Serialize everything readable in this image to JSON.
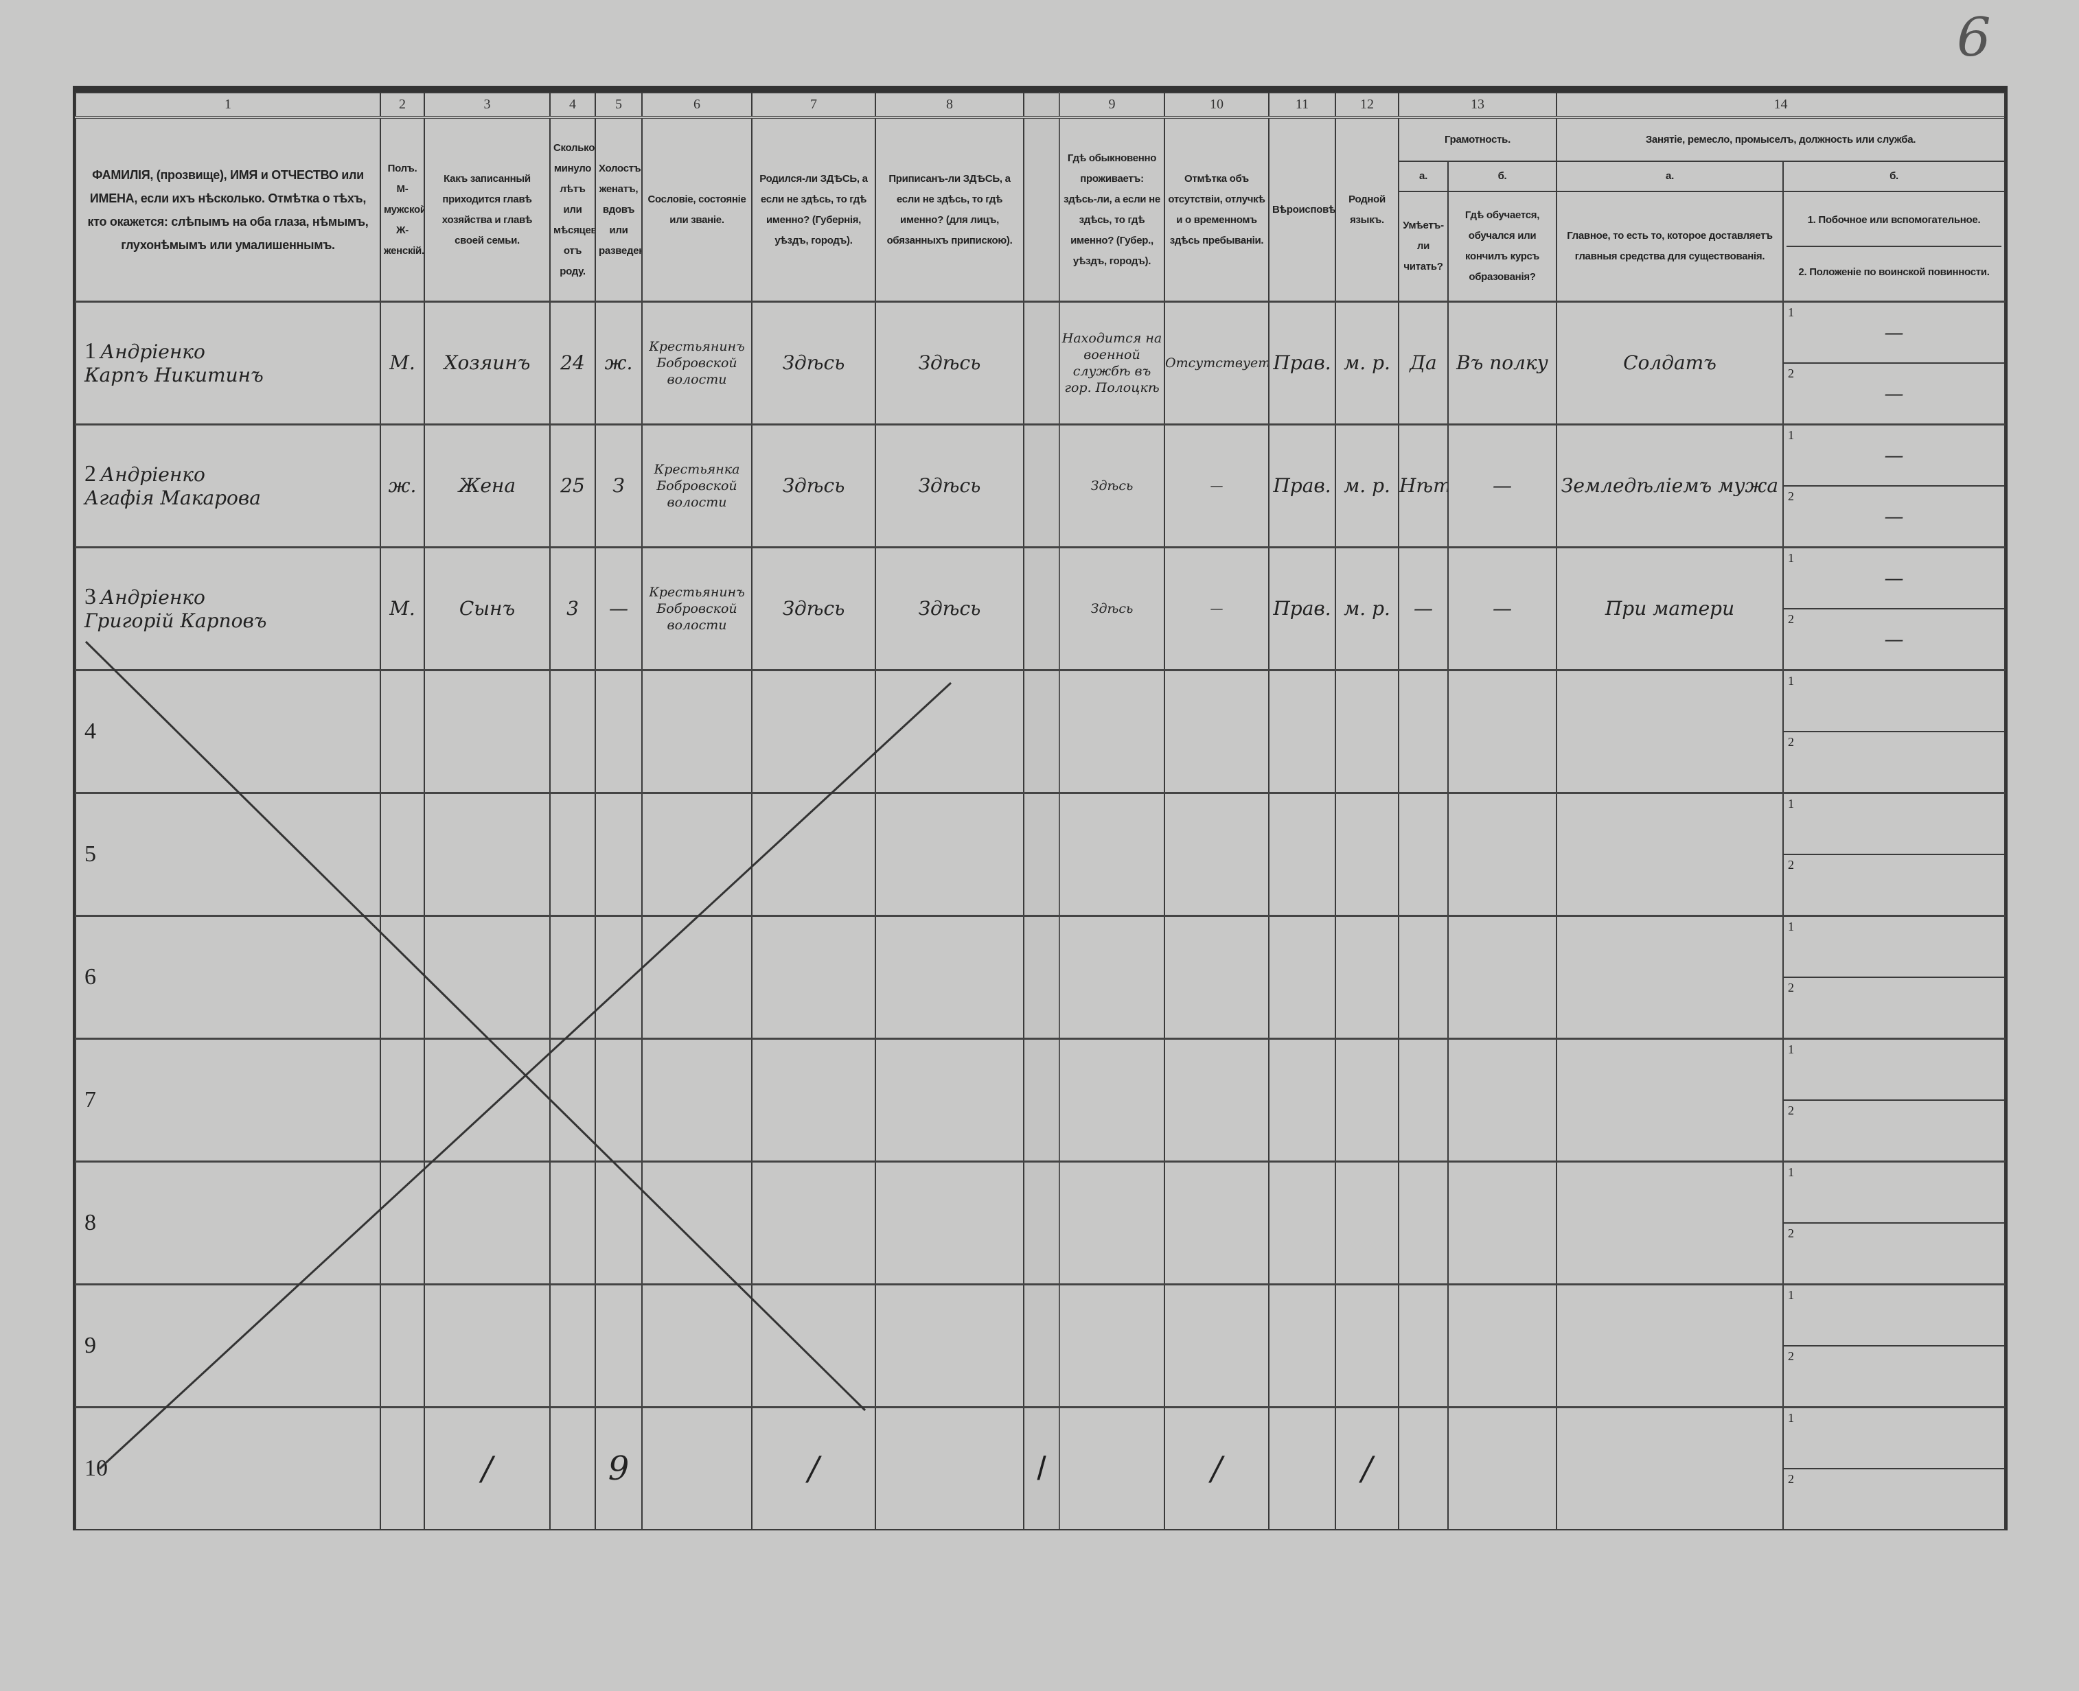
{
  "page_number": "6",
  "column_numbers": [
    "1",
    "2",
    "3",
    "4",
    "5",
    "6",
    "7",
    "8",
    "9",
    "10",
    "11",
    "12",
    "13",
    "14"
  ],
  "headers": {
    "c1": "ФАМИЛІЯ, (прозвище), ИМЯ и ОТЧЕСТВО или ИМЕНА, если ихъ нѣсколько. Отмѣтка о тѣхъ, кто окажется: слѣпымъ на оба глаза, нѣмымъ, глухонѣмымъ или умалишеннымъ.",
    "c2": "Полъ. М-мужской. Ж-женскій.",
    "c3": "Какъ записанный приходится главѣ хозяйства и главѣ своей семьи.",
    "c4": "Сколько минуло лѣтъ или мѣсяцевъ отъ роду.",
    "c5": "Холостъ, женатъ, вдовъ или разведенъ.",
    "c6": "Сословіе, состояніе или званіе.",
    "c7": "Родился-ли ЗДѢСЬ, а если не здѣсь, то гдѣ именно? (Губернія, уѣздъ, городъ).",
    "c8": "Приписанъ-ли ЗДѢСЬ, а если не здѣсь, то гдѣ именно? (для лицъ, обязанныхъ припискою).",
    "c9": "Гдѣ обыкновенно проживаетъ: здѣсь-ли, а если не здѣсь, то гдѣ именно? (Губер., уѣздъ, городъ).",
    "c10": "Отмѣтка объ отсутствіи, отлучкѣ и о временномъ здѣсь пребываніи.",
    "c11": "Вѣроисповѣданіе.",
    "c12": "Родной языкъ.",
    "c13": "Грамотность.",
    "c13a_letter": "а.",
    "c13b_letter": "б.",
    "c13a": "Умѣетъ-ли читать?",
    "c13b": "Гдѣ обучается, обучался или кончилъ курсъ образованія?",
    "c14": "Занятіе, ремесло, промыселъ, должность или служба.",
    "c14a_letter": "а.",
    "c14b_letter": "б.",
    "c14a": "Главное, то есть то, которое доставляетъ главныя средства для существованія.",
    "c14b_1": "1. Побочное или вспомогательное.",
    "c14b_2": "2. Положеніе по воинской повинности."
  },
  "subrow_labels": [
    "1",
    "2"
  ],
  "rows": [
    {
      "n": "1",
      "surname": "Андріенко",
      "name": "Карпъ Никитинъ",
      "sex": "М.",
      "relation": "Хозяинъ",
      "age": "24",
      "marital": "ж.",
      "estate": "Крестьянинъ Бобровской волости",
      "born": "Здѣсь",
      "registered": "Здѣсь",
      "resides": "Находится на военной службѣ въ гор. Полоцкѣ",
      "absence": "Отсутствуетъ",
      "religion": "Прав.",
      "language": "м. р.",
      "literate": "Да",
      "education": "Въ полку",
      "occupation": "Солдатъ",
      "occ_b1": "—",
      "occ_b2": "—"
    },
    {
      "n": "2",
      "surname": "Андріенко",
      "name": "Агафія Макарова",
      "sex": "ж.",
      "relation": "Жена",
      "age": "25",
      "marital": "З",
      "estate": "Крестьянка Бобровской волости",
      "born": "Здѣсь",
      "registered": "Здѣсь",
      "resides": "Здѣсь",
      "absence": "—",
      "religion": "Прав.",
      "language": "м. р.",
      "literate": "Нѣтъ",
      "education": "—",
      "occupation": "Земледѣліемъ мужа",
      "occ_b1": "—",
      "occ_b2": "—"
    },
    {
      "n": "3",
      "surname": "Андріенко",
      "name": "Григорій Карповъ",
      "sex": "М.",
      "relation": "Сынъ",
      "age": "3",
      "marital": "—",
      "estate": "Крестьянинъ Бобровской волости",
      "born": "Здѣсь",
      "registered": "Здѣсь",
      "resides": "Здѣсь",
      "absence": "—",
      "religion": "Прав.",
      "language": "м. р.",
      "literate": "—",
      "education": "—",
      "occupation": "При матери",
      "occ_b1": "—",
      "occ_b2": "—"
    },
    {
      "n": "4"
    },
    {
      "n": "5"
    },
    {
      "n": "6"
    },
    {
      "n": "7"
    },
    {
      "n": "8"
    },
    {
      "n": "9"
    },
    {
      "n": "10",
      "marks": [
        "/",
        "9",
        "/",
        "/",
        "/",
        "/"
      ]
    }
  ],
  "strike_mark": "cross-out X over rows 4–10",
  "colors": {
    "paper": "#c8c8c7",
    "ink": "#222222",
    "rule": "#3a3a3a"
  }
}
